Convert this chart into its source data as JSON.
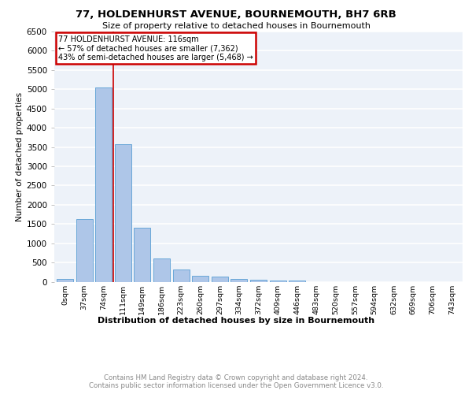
{
  "title1": "77, HOLDENHURST AVENUE, BOURNEMOUTH, BH7 6RB",
  "title2": "Size of property relative to detached houses in Bournemouth",
  "xlabel": "Distribution of detached houses by size in Bournemouth",
  "ylabel": "Number of detached properties",
  "footnote1": "Contains HM Land Registry data © Crown copyright and database right 2024.",
  "footnote2": "Contains public sector information licensed under the Open Government Licence v3.0.",
  "bar_labels": [
    "0sqm",
    "37sqm",
    "74sqm",
    "111sqm",
    "149sqm",
    "186sqm",
    "223sqm",
    "260sqm",
    "297sqm",
    "334sqm",
    "372sqm",
    "409sqm",
    "446sqm",
    "483sqm",
    "520sqm",
    "557sqm",
    "594sqm",
    "632sqm",
    "669sqm",
    "706sqm",
    "743sqm"
  ],
  "bar_values": [
    75,
    1620,
    5050,
    3570,
    1400,
    610,
    310,
    155,
    125,
    80,
    55,
    30,
    40,
    0,
    0,
    0,
    0,
    0,
    0,
    0,
    0
  ],
  "bar_color": "#aec6e8",
  "bar_edge_color": "#5a9fd4",
  "property_line_x": 2.5,
  "property_line_color": "#cc0000",
  "annotation_title": "77 HOLDENHURST AVENUE: 116sqm",
  "annotation_line1": "← 57% of detached houses are smaller (7,362)",
  "annotation_line2": "43% of semi-detached houses are larger (5,468) →",
  "annotation_box_color": "#cc0000",
  "ylim": [
    0,
    6500
  ],
  "yticks": [
    0,
    500,
    1000,
    1500,
    2000,
    2500,
    3000,
    3500,
    4000,
    4500,
    5000,
    5500,
    6000,
    6500
  ],
  "bg_color": "#edf2f9",
  "grid_color": "#ffffff",
  "fig_bg": "#ffffff"
}
